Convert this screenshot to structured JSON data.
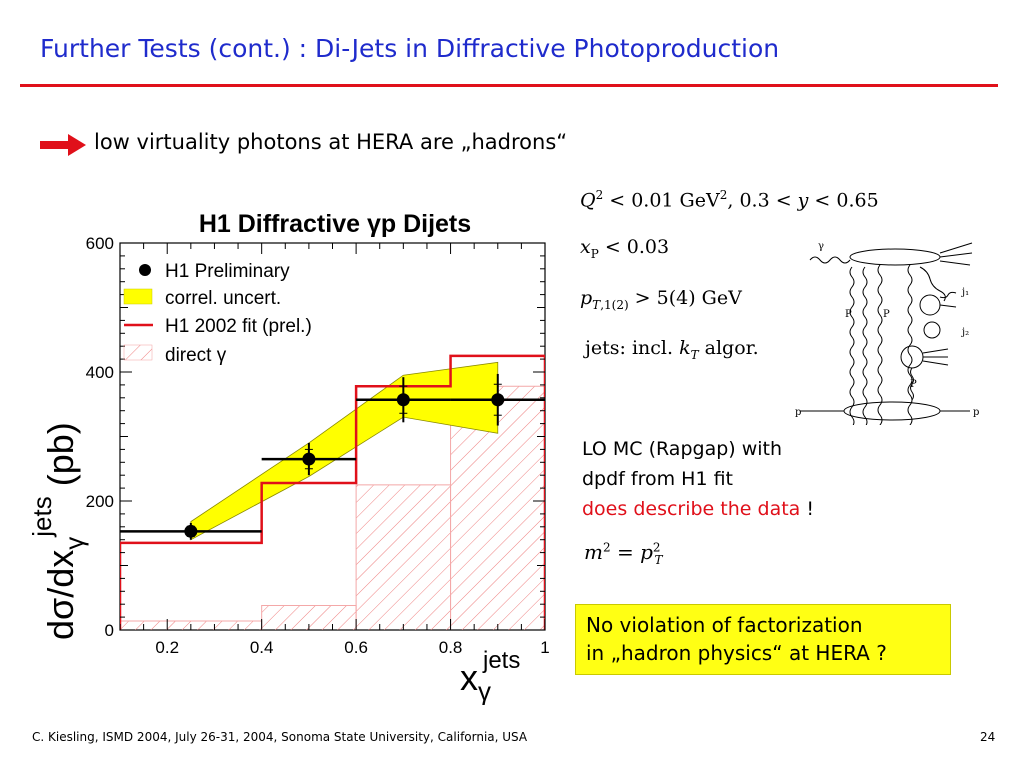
{
  "slide": {
    "title": "Further Tests (cont.) :  Di-Jets in Diffractive Photoproduction",
    "bullet": "low virtuality photons at HERA are „hadrons“",
    "cuts": {
      "line1": "Q² < 0.01 GeV², 0.3 < y < 0.65",
      "line2": "xP < 0.03",
      "line3": "pT,1(2) > 5(4) GeV",
      "line4": "jets: incl. kT  algor."
    },
    "mc_note": {
      "line1": "LO MC (Rapgap) with",
      "line2": "dpdf from H1 fit",
      "line3": "does describe the data",
      "line3_suffix": " !"
    },
    "scale_formula": "m² = pT²",
    "conclusion": {
      "line1": "No violation of factorization",
      "line2": "in „hadron physics“ at HERA ?"
    },
    "footer": "C. Kiesling, ISMD 2004, July 26-31, 2004, Sonoma State University, California, USA",
    "page_number": "24",
    "colors": {
      "title": "#1f2bcc",
      "accent": "#e0101a",
      "band": "#ffff00",
      "box": "#ffff14"
    }
  },
  "diagram": {
    "labels": {
      "gamma": "γ",
      "j1": "j₁",
      "j2": "j₂",
      "P_left": "P",
      "P_right": "P",
      "P_lower": "P",
      "p_in": "p",
      "p_out": "p"
    }
  },
  "chart_data": {
    "type": "step",
    "title": "H1 Diffractive γp Dijets",
    "xlabel": "xγ^jets",
    "ylabel": "dσ/dxγ^jets (pb)",
    "xlim": [
      0.1,
      1.0
    ],
    "ylim": [
      0,
      600
    ],
    "xticks": [
      "0.2",
      "0.4",
      "0.6",
      "0.8",
      "1"
    ],
    "yticks": [
      "0",
      "200",
      "400",
      "600"
    ],
    "legend": {
      "placement": "top-left",
      "entries": [
        "H1 Preliminary",
        "correl. uncert.",
        "H1 2002 fit (prel.)",
        "direct γ"
      ]
    },
    "data_points": [
      {
        "x": 0.25,
        "xerr": [
          0.1,
          0.4
        ],
        "y": 153,
        "yerr": 13
      },
      {
        "x": 0.5,
        "xerr": [
          0.4,
          0.6
        ],
        "y": 265,
        "yerr": 25
      },
      {
        "x": 0.7,
        "xerr": [
          0.6,
          0.8
        ],
        "y": 357,
        "yerr": 35
      },
      {
        "x": 0.9,
        "xerr": [
          0.8,
          1.0
        ],
        "y": 357,
        "yerr": 40
      }
    ],
    "band": {
      "x": [
        0.25,
        0.5,
        0.7,
        0.9
      ],
      "lo": [
        140,
        238,
        330,
        305
      ],
      "hi": [
        168,
        290,
        395,
        415
      ]
    },
    "fit_histogram": {
      "edges": [
        0.1,
        0.4,
        0.6,
        0.8,
        1.0
      ],
      "values": [
        135,
        228,
        378,
        425
      ]
    },
    "direct_histogram": {
      "edges": [
        0.1,
        0.4,
        0.6,
        0.8,
        1.0
      ],
      "values": [
        14,
        38,
        225,
        378
      ]
    }
  }
}
